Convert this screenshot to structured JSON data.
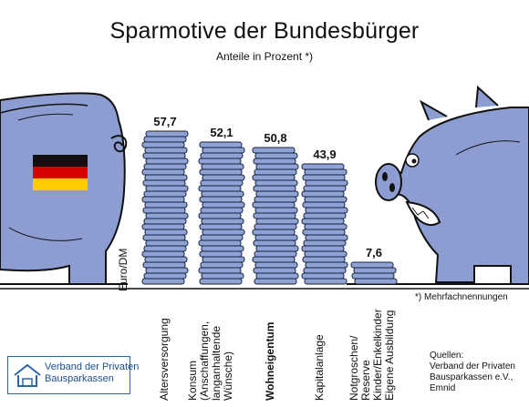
{
  "title": "Sparmotive der Bundesbürger",
  "subtitle": "Anteile in Prozent *)",
  "unit_label": "Euro/DM",
  "footnote": "*) Mehrfachnennungen",
  "source": "Quellen:\nVerband der Privaten\nBausparkassen e.V.,\nEmnid",
  "logo_text": "Verband der Privaten\nBausparkassen",
  "colors": {
    "coin_fill": "#8ea2d6",
    "coin_stroke": "#1b2338",
    "pig_fill": "#8d9dd2",
    "highlight_bold_category": "Wohneigentum"
  },
  "chart_data": {
    "type": "bar",
    "title": "Sparmotive der Bundesbürger",
    "subtitle": "Anteile in Prozent *)",
    "categories": [
      "Altersversorgung",
      "Konsum\n(Anschaffungen,\nlanganhaltende\nWünsche)",
      "Wohneigentum",
      "Kapitalanlage",
      "Notgroschen/\nReserve\nKinder/Enkelkinder\nEigene Ausbildung"
    ],
    "values": [
      57.7,
      52.1,
      50.8,
      43.9,
      7.6
    ],
    "value_labels": [
      "57,7",
      "52,1",
      "50,8",
      "43,9",
      "7,6"
    ],
    "bold_category_index": 2,
    "grid": false,
    "legend": "none"
  }
}
